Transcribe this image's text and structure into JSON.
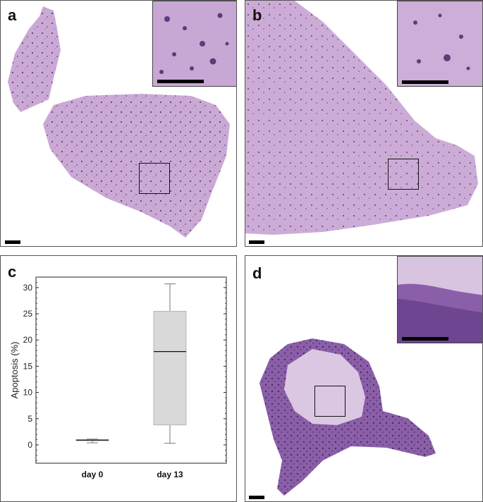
{
  "figure": {
    "panels": [
      {
        "label": "a",
        "description_free": true
      },
      {
        "label": "b"
      },
      {
        "label": "c"
      },
      {
        "label": "d"
      }
    ]
  },
  "panel_labels": {
    "a": "a",
    "b": "b",
    "c": "c",
    "d": "d"
  },
  "colors": {
    "tissue_pink": "#c8a6d2",
    "tissue_light": "#d6bddf",
    "nuclei": "#5a3d7a",
    "tumor_dark": "#7a4c98",
    "box_fill": "#d9d9d9"
  },
  "chart_data": {
    "type": "boxplot",
    "ylabel": "Apoptosis (%)",
    "ylim": [
      -3.5,
      32
    ],
    "yticks": [
      0,
      5,
      10,
      15,
      20,
      25,
      30
    ],
    "categories": [
      "day 0",
      "day 13"
    ],
    "boxes": [
      {
        "category": "day 0",
        "min": 0.4,
        "q1": 0.8,
        "median": 0.9,
        "q3": 1.0,
        "max": 1.1
      },
      {
        "category": "day 13",
        "min": 0.3,
        "q1": 3.8,
        "median": 17.8,
        "q3": 25.5,
        "max": 30.7
      }
    ]
  }
}
